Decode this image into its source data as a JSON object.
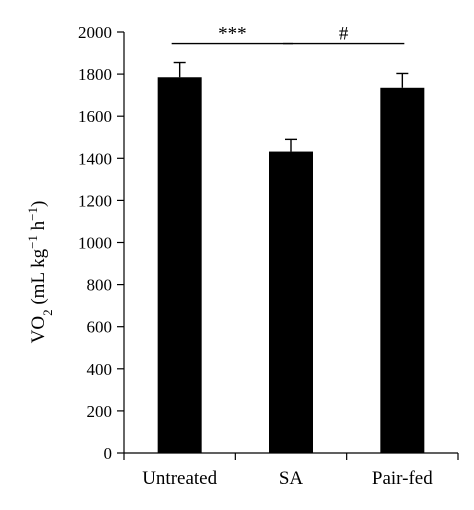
{
  "chart_data": {
    "type": "bar",
    "categories": [
      "Untreated",
      "SA",
      "Pair-fed"
    ],
    "values": [
      1785,
      1432,
      1735
    ],
    "errors": [
      70,
      58,
      68
    ],
    "ylabel_parts": {
      "base": "VO",
      "sub": "2",
      "units_open": " (mL kg",
      "sup1": "−1",
      "mid": " h",
      "sup2": "−1",
      "close": ")"
    },
    "ylim": [
      0,
      2000
    ],
    "yticks": [
      0,
      200,
      400,
      600,
      800,
      1000,
      1200,
      1400,
      1600,
      1800,
      2000
    ],
    "bar_color": "#000000",
    "grid": false,
    "significance": [
      {
        "from": 0,
        "to": 1,
        "label": "***",
        "y": 1945
      },
      {
        "from": 1,
        "to": 2,
        "label": "#",
        "y": 1945
      }
    ]
  }
}
